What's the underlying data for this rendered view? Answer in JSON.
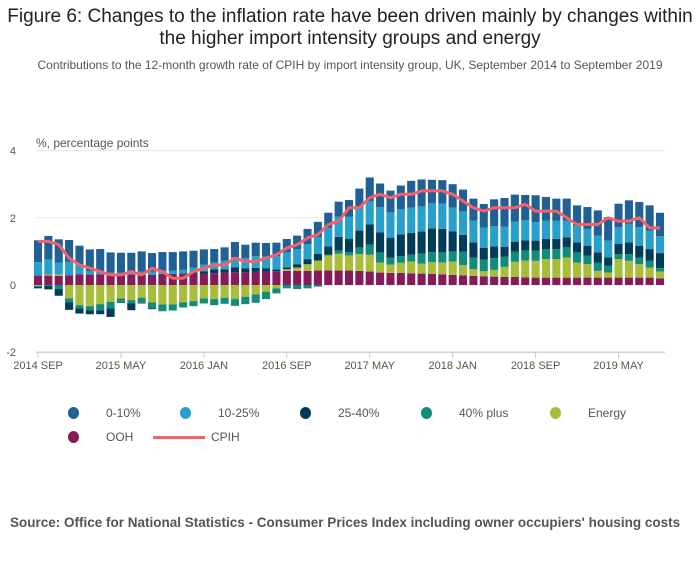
{
  "title": "Figure 6: Changes to the inflation rate have been driven mainly by changes within the higher import intensity groups and energy",
  "subtitle": "Contributions to the 12-month growth rate of CPIH by import intensity group, UK, September 2014 to September 2019",
  "unit_label": "%, percentage points",
  "source": "Source: Office for National Statistics - Consumer Prices Index including owner occupiers' housing costs",
  "chart_data": {
    "type": "bar",
    "stacked": true,
    "title": "Figure 6: Changes to the inflation rate have been driven mainly by changes within the higher import intensity groups and energy",
    "subtitle": "Contributions to the 12-month growth rate of CPIH by import intensity group, UK, September 2014 to September 2019",
    "ylabel": "%, percentage points",
    "xlabel": "",
    "ylim": [
      -2,
      4
    ],
    "yticks": [
      -2,
      0,
      2,
      4
    ],
    "grid": true,
    "legend_position": "bottom",
    "xtick_labels": [
      "2014 SEP",
      "2015 MAY",
      "2016 JAN",
      "2016 SEP",
      "2017 MAY",
      "2018 JAN",
      "2018 SEP",
      "2019 MAY"
    ],
    "xtick_indices": [
      0,
      8,
      16,
      24,
      32,
      40,
      48,
      56
    ],
    "categories": [
      "2014 SEP",
      "2014 OCT",
      "2014 NOV",
      "2014 DEC",
      "2015 JAN",
      "2015 FEB",
      "2015 MAR",
      "2015 APR",
      "2015 MAY",
      "2015 JUN",
      "2015 JUL",
      "2015 AUG",
      "2015 SEP",
      "2015 OCT",
      "2015 NOV",
      "2015 DEC",
      "2016 JAN",
      "2016 FEB",
      "2016 MAR",
      "2016 APR",
      "2016 MAY",
      "2016 JUN",
      "2016 JUL",
      "2016 AUG",
      "2016 SEP",
      "2016 OCT",
      "2016 NOV",
      "2016 DEC",
      "2017 JAN",
      "2017 FEB",
      "2017 MAR",
      "2017 APR",
      "2017 MAY",
      "2017 JUN",
      "2017 JUL",
      "2017 AUG",
      "2017 SEP",
      "2017 OCT",
      "2017 NOV",
      "2017 DEC",
      "2018 JAN",
      "2018 FEB",
      "2018 MAR",
      "2018 APR",
      "2018 MAY",
      "2018 JUN",
      "2018 JUL",
      "2018 AUG",
      "2018 SEP",
      "2018 OCT",
      "2018 NOV",
      "2018 DEC",
      "2019 JAN",
      "2019 FEB",
      "2019 MAR",
      "2019 APR",
      "2019 MAY",
      "2019 JUN",
      "2019 JUL",
      "2019 AUG",
      "2019 SEP"
    ],
    "series": [
      {
        "name": "OOH",
        "color": "#871a5b",
        "values": [
          0.28,
          0.28,
          0.27,
          0.29,
          0.32,
          0.31,
          0.32,
          0.32,
          0.31,
          0.31,
          0.3,
          0.3,
          0.31,
          0.31,
          0.32,
          0.33,
          0.33,
          0.35,
          0.37,
          0.38,
          0.38,
          0.39,
          0.4,
          0.41,
          0.42,
          0.42,
          0.42,
          0.43,
          0.43,
          0.43,
          0.43,
          0.42,
          0.4,
          0.37,
          0.36,
          0.36,
          0.35,
          0.34,
          0.33,
          0.32,
          0.3,
          0.29,
          0.27,
          0.26,
          0.25,
          0.24,
          0.24,
          0.23,
          0.22,
          0.22,
          0.22,
          0.22,
          0.22,
          0.22,
          0.22,
          0.22,
          0.22,
          0.22,
          0.22,
          0.22,
          0.2
        ]
      },
      {
        "name": "Energy",
        "color": "#a8bd3a",
        "values": [
          -0.03,
          0.03,
          0.04,
          -0.4,
          -0.6,
          -0.63,
          -0.57,
          -0.5,
          -0.4,
          -0.45,
          -0.38,
          -0.52,
          -0.58,
          -0.58,
          -0.52,
          -0.48,
          -0.4,
          -0.42,
          -0.38,
          -0.42,
          -0.35,
          -0.28,
          -0.2,
          -0.1,
          0.05,
          0.1,
          0.2,
          0.3,
          0.45,
          0.5,
          0.45,
          0.5,
          0.5,
          0.3,
          0.25,
          0.3,
          0.35,
          0.3,
          0.35,
          0.35,
          0.4,
          0.3,
          0.2,
          0.15,
          0.2,
          0.3,
          0.45,
          0.5,
          0.5,
          0.55,
          0.55,
          0.6,
          0.45,
          0.4,
          0.2,
          0.15,
          0.55,
          0.5,
          0.4,
          0.3,
          0.2
        ]
      },
      {
        "name": "40% plus",
        "color": "#118c7b",
        "values": [
          -0.02,
          -0.03,
          -0.12,
          -0.12,
          -0.1,
          -0.12,
          -0.18,
          -0.2,
          -0.1,
          -0.1,
          -0.15,
          -0.18,
          -0.2,
          -0.18,
          -0.15,
          -0.15,
          -0.15,
          -0.18,
          -0.18,
          -0.2,
          -0.22,
          -0.25,
          -0.22,
          -0.15,
          -0.1,
          -0.12,
          -0.1,
          -0.05,
          0.02,
          0.1,
          0.1,
          0.2,
          0.3,
          0.3,
          0.2,
          0.2,
          0.2,
          0.3,
          0.3,
          0.3,
          0.3,
          0.4,
          0.35,
          0.35,
          0.35,
          0.3,
          0.3,
          0.3,
          0.3,
          0.3,
          0.3,
          0.3,
          0.3,
          0.25,
          0.25,
          0.2,
          0.15,
          0.2,
          0.2,
          0.2,
          0.1
        ]
      },
      {
        "name": "25-40%",
        "color": "#003c57",
        "values": [
          -0.05,
          -0.1,
          -0.2,
          -0.22,
          -0.15,
          -0.12,
          -0.12,
          -0.25,
          -0.03,
          -0.2,
          -0.02,
          -0.02,
          0.02,
          0.02,
          0.03,
          0.04,
          0.08,
          0.12,
          0.1,
          0.15,
          0.12,
          0.12,
          0.1,
          0.05,
          0.05,
          0.1,
          0.15,
          0.2,
          0.25,
          0.4,
          0.4,
          0.5,
          0.6,
          0.6,
          0.6,
          0.65,
          0.65,
          0.65,
          0.7,
          0.7,
          0.6,
          0.5,
          0.45,
          0.35,
          0.35,
          0.3,
          0.3,
          0.3,
          0.3,
          0.3,
          0.3,
          0.3,
          0.3,
          0.3,
          0.3,
          0.25,
          0.3,
          0.35,
          0.35,
          0.35,
          0.45
        ]
      },
      {
        "name": "10-25%",
        "color": "#27a0cc",
        "values": [
          0.4,
          0.45,
          0.35,
          0.4,
          0.3,
          0.1,
          0.05,
          0.05,
          0.05,
          0.05,
          0.1,
          0.1,
          0.1,
          0.1,
          0.1,
          0.15,
          0.2,
          0.2,
          0.25,
          0.3,
          0.3,
          0.35,
          0.35,
          0.4,
          0.45,
          0.45,
          0.45,
          0.5,
          0.55,
          0.6,
          0.65,
          0.7,
          0.7,
          0.75,
          0.75,
          0.75,
          0.75,
          0.75,
          0.75,
          0.75,
          0.7,
          0.7,
          0.65,
          0.6,
          0.6,
          0.6,
          0.6,
          0.6,
          0.55,
          0.55,
          0.55,
          0.5,
          0.5,
          0.5,
          0.5,
          0.5,
          0.5,
          0.55,
          0.55,
          0.55,
          0.5
        ]
      },
      {
        "name": "0-10%",
        "color": "#206095",
        "values": [
          0.65,
          0.7,
          0.7,
          0.65,
          0.55,
          0.65,
          0.7,
          0.6,
          0.6,
          0.6,
          0.6,
          0.55,
          0.55,
          0.55,
          0.55,
          0.5,
          0.45,
          0.4,
          0.4,
          0.45,
          0.4,
          0.4,
          0.4,
          0.4,
          0.4,
          0.4,
          0.45,
          0.45,
          0.45,
          0.45,
          0.5,
          0.55,
          0.7,
          0.7,
          0.65,
          0.7,
          0.8,
          0.8,
          0.7,
          0.7,
          0.7,
          0.65,
          0.65,
          0.7,
          0.8,
          0.85,
          0.8,
          0.75,
          0.8,
          0.7,
          0.65,
          0.65,
          0.6,
          0.65,
          0.75,
          0.7,
          0.7,
          0.7,
          0.75,
          0.75,
          0.7
        ]
      }
    ],
    "line_series": {
      "name": "CPIH",
      "color": "#f66068",
      "values": [
        1.3,
        1.3,
        1.2,
        0.8,
        0.6,
        0.5,
        0.4,
        0.3,
        0.3,
        0.4,
        0.3,
        0.5,
        0.4,
        0.2,
        0.2,
        0.4,
        0.5,
        0.6,
        0.6,
        0.8,
        0.7,
        0.7,
        0.8,
        0.9,
        1.1,
        1.2,
        1.4,
        1.5,
        1.8,
        1.9,
        2.3,
        2.3,
        2.6,
        2.7,
        2.6,
        2.7,
        2.7,
        2.8,
        2.8,
        2.8,
        2.7,
        2.5,
        2.3,
        2.2,
        2.3,
        2.3,
        2.3,
        2.4,
        2.2,
        2.2,
        2.2,
        2.0,
        1.8,
        1.8,
        1.8,
        2.0,
        1.9,
        1.9,
        2.0,
        1.7,
        1.7
      ]
    }
  },
  "legend": [
    {
      "label": "0-10%",
      "color": "#206095",
      "kind": "dot"
    },
    {
      "label": "10-25%",
      "color": "#27a0cc",
      "kind": "dot"
    },
    {
      "label": "25-40%",
      "color": "#003c57",
      "kind": "dot"
    },
    {
      "label": "40% plus",
      "color": "#118c7b",
      "kind": "dot"
    },
    {
      "label": "Energy",
      "color": "#a8bd3a",
      "kind": "dot"
    },
    {
      "label": "OOH",
      "color": "#871a5b",
      "kind": "dot"
    },
    {
      "label": "CPIH",
      "color": "#f66068",
      "kind": "line"
    }
  ]
}
